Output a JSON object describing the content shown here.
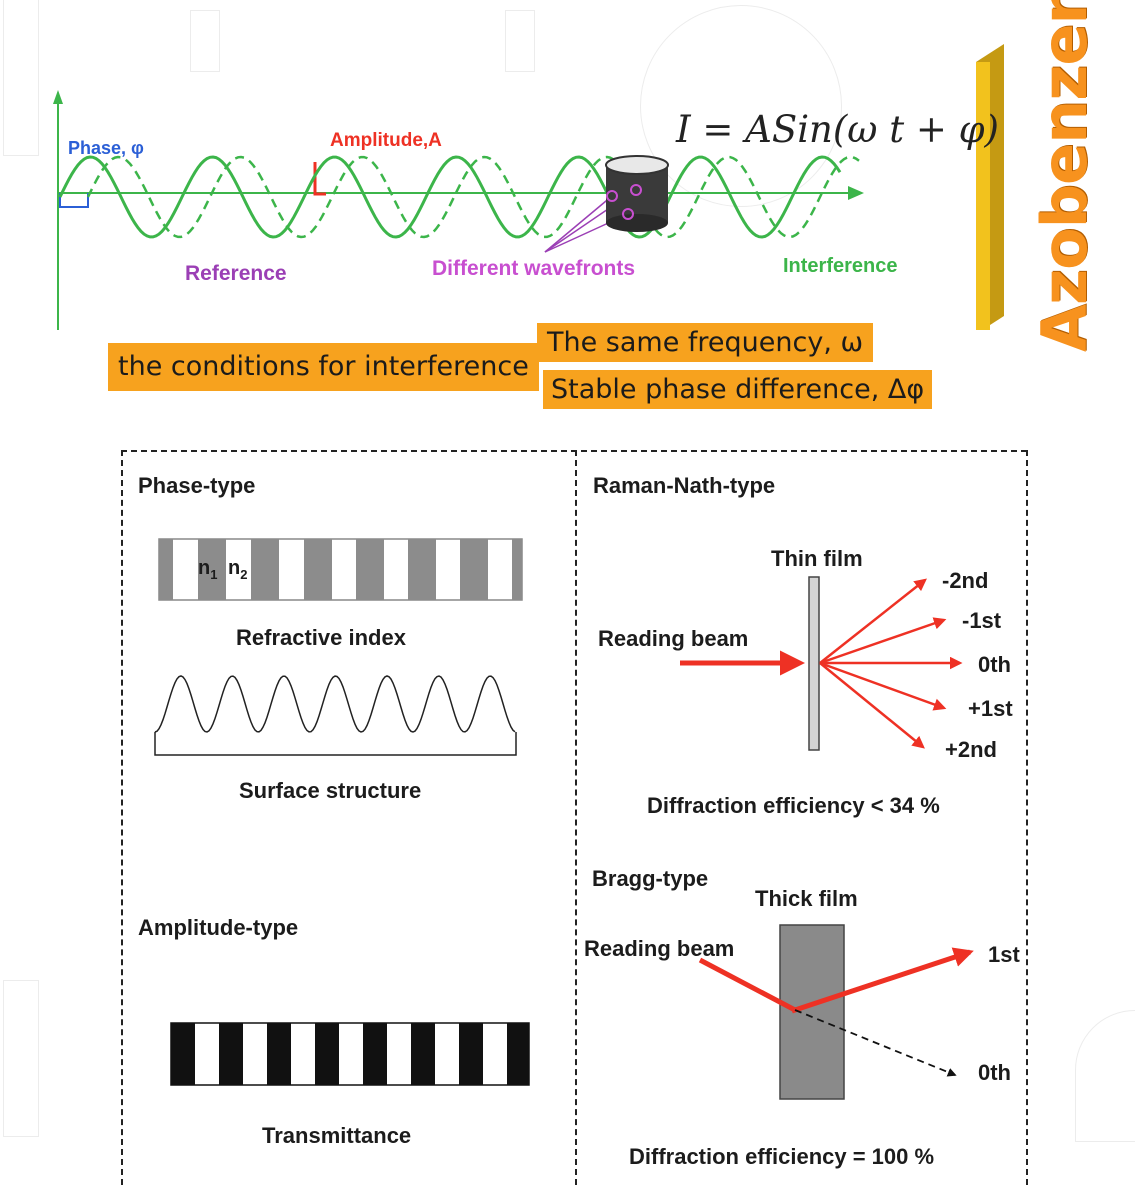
{
  "top": {
    "phase_label": "Phase, φ",
    "amplitude_label": "Amplitude,A",
    "reference_label": "Reference",
    "wavefronts_label": "Different wavefronts",
    "interference_label": "Interference",
    "formula": "I = ASin(ω t  +  φ)",
    "azobenzene": "Azobenzene",
    "conditions": "the conditions for interference",
    "cond_frequency": "The same frequency, ω",
    "cond_phase": "Stable phase difference, Δφ"
  },
  "phase_panel": {
    "title": "Phase-type",
    "n1": "n",
    "n1_sub": "1",
    "n2": "n",
    "n2_sub": "2",
    "refractive_caption": "Refractive index",
    "surface_caption": "Surface structure"
  },
  "amplitude_panel": {
    "title": "Amplitude-type",
    "transmittance_caption": "Transmittance"
  },
  "raman_panel": {
    "title": "Raman-Nath-type",
    "film_label": "Thin film",
    "beam_label": "Reading beam",
    "orders": [
      "-2nd",
      "-1st",
      "0th",
      "+1st",
      "+2nd"
    ],
    "efficiency": "Diffraction efficiency < 34 %"
  },
  "bragg_panel": {
    "title": "Bragg-type",
    "film_label": "Thick film",
    "beam_label": "Reading beam",
    "order_first": "1st",
    "order_zero": "0th",
    "efficiency": "Diffraction efficiency = 100 %"
  },
  "colors": {
    "wave_green": "#3cb54a",
    "arrow_red": "#ee3124",
    "orange": "#f7a21e",
    "purple": "#9b3fb5",
    "phase_blue": "#2b5fd6"
  }
}
